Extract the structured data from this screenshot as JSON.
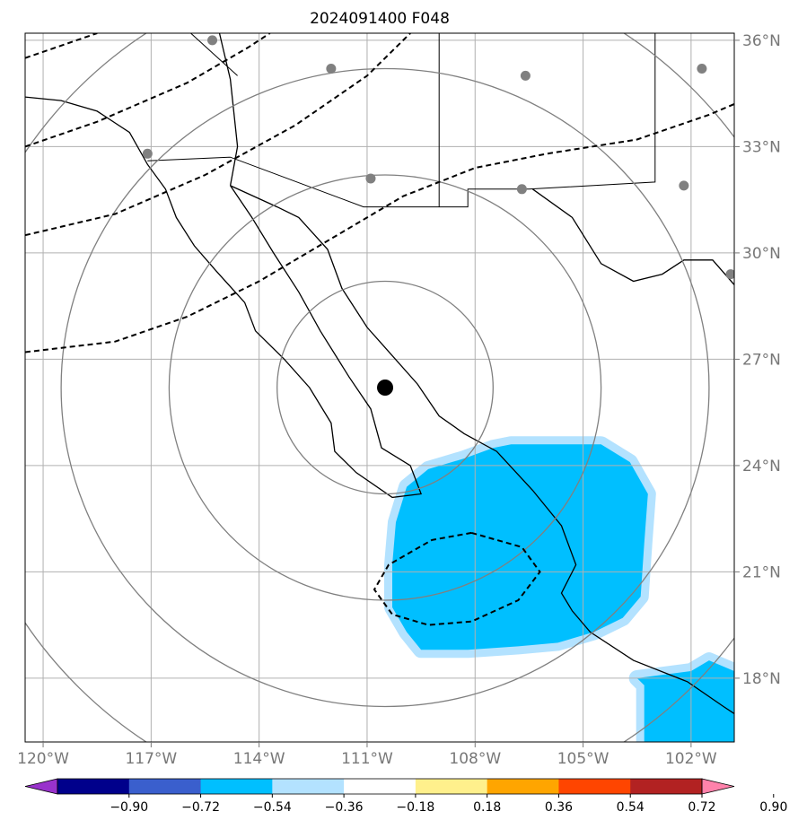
{
  "chart_data": {
    "type": "map",
    "title": "2024091400 F048",
    "projection": "equidistant map with lat/lon grid",
    "xlim": [
      -120.5,
      -100.8
    ],
    "ylim": [
      16.2,
      36.2
    ],
    "x_ticks": [
      -120,
      -117,
      -114,
      -111,
      -108,
      -105,
      -102
    ],
    "x_tick_labels": [
      "120°W",
      "117°W",
      "114°W",
      "111°W",
      "108°W",
      "105°W",
      "102°W"
    ],
    "y_ticks": [
      18,
      21,
      24,
      27,
      30,
      33,
      36
    ],
    "y_tick_labels": [
      "18°N",
      "21°N",
      "24°N",
      "27°N",
      "30°N",
      "33°N",
      "36°N"
    ],
    "grid": true,
    "center_marker": {
      "lon": -110.5,
      "lat": 26.2,
      "color": "#000000"
    },
    "range_rings": {
      "center_lon": -110.5,
      "center_lat": 26.2,
      "radii_deg": [
        3,
        6,
        9,
        12
      ],
      "color": "#808080"
    },
    "station_points": [
      {
        "lon": -115.3,
        "lat": 36.0
      },
      {
        "lon": -112.0,
        "lat": 35.2
      },
      {
        "lon": -106.6,
        "lat": 35.0
      },
      {
        "lon": -101.7,
        "lat": 35.2
      },
      {
        "lon": -117.1,
        "lat": 32.8
      },
      {
        "lon": -110.9,
        "lat": 32.1
      },
      {
        "lon": -106.7,
        "lat": 31.8
      },
      {
        "lon": -102.2,
        "lat": 31.9
      },
      {
        "lon": -100.9,
        "lat": 29.4
      }
    ],
    "dashed_contours": [
      [
        [
          -120.5,
          35.5
        ],
        [
          -118.5,
          36.2
        ]
      ],
      [
        [
          -120.5,
          33.0
        ],
        [
          -118.5,
          33.7
        ],
        [
          -116.0,
          34.8
        ],
        [
          -114.3,
          35.8
        ],
        [
          -113.7,
          36.2
        ]
      ],
      [
        [
          -120.5,
          30.5
        ],
        [
          -118.0,
          31.1
        ],
        [
          -115.5,
          32.2
        ],
        [
          -113.0,
          33.6
        ],
        [
          -111.0,
          35.0
        ],
        [
          -109.8,
          36.2
        ]
      ],
      [
        [
          -120.5,
          27.2
        ],
        [
          -118.0,
          27.5
        ],
        [
          -116.0,
          28.2
        ],
        [
          -114.0,
          29.2
        ],
        [
          -112.0,
          30.4
        ],
        [
          -110.0,
          31.6
        ],
        [
          -108.0,
          32.4
        ],
        [
          -106.0,
          32.8
        ],
        [
          -103.5,
          33.2
        ],
        [
          -101.5,
          33.9
        ],
        [
          -100.8,
          34.2
        ]
      ]
    ],
    "closed_dashed_contour": [
      [
        -108.1,
        22.1
      ],
      [
        -106.7,
        21.7
      ],
      [
        -106.2,
        21.0
      ],
      [
        -106.8,
        20.2
      ],
      [
        -108.1,
        19.6
      ],
      [
        -109.3,
        19.5
      ],
      [
        -110.3,
        19.8
      ],
      [
        -110.8,
        20.5
      ],
      [
        -110.4,
        21.2
      ],
      [
        -109.2,
        21.9
      ],
      [
        -108.1,
        22.1
      ]
    ],
    "filled_regions": [
      {
        "level": "-0.54 to -0.36",
        "color": "#00bfff",
        "outline_color": "#b3e2ff",
        "points": [
          [
            -107.0,
            24.6
          ],
          [
            -104.5,
            24.6
          ],
          [
            -103.7,
            24.1
          ],
          [
            -103.2,
            23.2
          ],
          [
            -103.3,
            21.8
          ],
          [
            -103.4,
            20.3
          ],
          [
            -103.9,
            19.7
          ],
          [
            -104.7,
            19.3
          ],
          [
            -105.7,
            19.0
          ],
          [
            -106.8,
            18.9
          ],
          [
            -108.2,
            18.8
          ],
          [
            -109.5,
            18.8
          ],
          [
            -109.9,
            19.3
          ],
          [
            -110.3,
            20.0
          ],
          [
            -110.3,
            21.2
          ],
          [
            -110.2,
            22.4
          ],
          [
            -109.9,
            23.4
          ],
          [
            -109.3,
            23.9
          ],
          [
            -108.3,
            24.2
          ],
          [
            -107.5,
            24.5
          ],
          [
            -107.0,
            24.6
          ]
        ]
      },
      {
        "level": "-0.54 to -0.36",
        "color": "#00bfff",
        "outline_color": "#b3e2ff",
        "points": [
          [
            -103.5,
            18.0
          ],
          [
            -102.0,
            18.2
          ],
          [
            -101.5,
            18.5
          ],
          [
            -100.8,
            18.2
          ],
          [
            -100.8,
            16.2
          ],
          [
            -103.3,
            16.2
          ],
          [
            -103.3,
            17.8
          ],
          [
            -103.5,
            18.0
          ]
        ]
      }
    ],
    "colorbar": {
      "levels": [
        "−0.90",
        "−0.72",
        "−0.54",
        "−0.36",
        "−0.18",
        "0.18",
        "0.36",
        "0.54",
        "0.72",
        "0.90"
      ],
      "colors": [
        "#9932cc",
        "#00008b",
        "#3a5fcd",
        "#00bfff",
        "#b3e2ff",
        "#ffffff",
        "#fff08c",
        "#ffa500",
        "#ff4500",
        "#b22222",
        "#ff82ab"
      ],
      "extend": "both"
    }
  }
}
